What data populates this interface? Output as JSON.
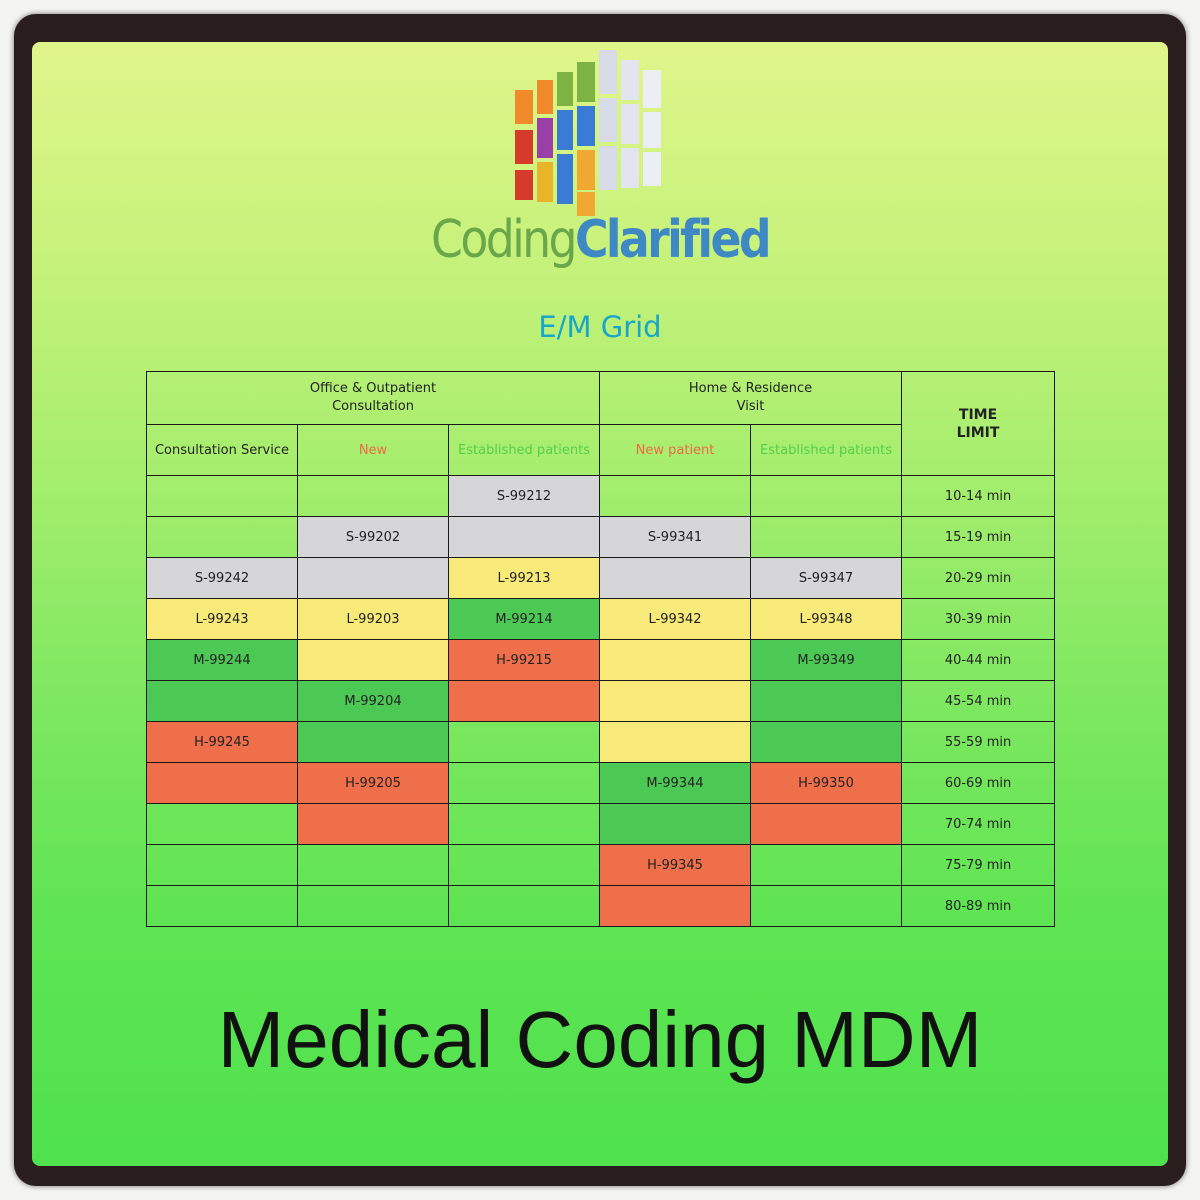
{
  "brand": {
    "part1": "Coding",
    "part2": "Clarified"
  },
  "subtitle": "E/M Grid",
  "table": {
    "group_headers": {
      "office_line1": "Office & Outpatient",
      "office_line2": "Consultation",
      "home_line1": "Home & Residence",
      "home_line2": "Visit",
      "time_line1": "TIME",
      "time_line2": "LIMIT"
    },
    "columns": [
      "Consultation Service",
      "New",
      "Established patients",
      "New patient",
      "Established patients"
    ],
    "colors": {
      "gray": "#d6d6d8",
      "yellow": "#f7ea78",
      "green": "#4cc855",
      "red": "#ef6f4b",
      "new_header_text": "#ef6a45",
      "established_header_text": "#54cf4c"
    },
    "rows": [
      {
        "cells": [
          {
            "text": "",
            "color": ""
          },
          {
            "text": "",
            "color": ""
          },
          {
            "text": "S-99212",
            "color": "gray"
          },
          {
            "text": "",
            "color": ""
          },
          {
            "text": "",
            "color": ""
          }
        ],
        "time": "10-14 min"
      },
      {
        "cells": [
          {
            "text": "",
            "color": ""
          },
          {
            "text": "S-99202",
            "color": "gray"
          },
          {
            "text": "",
            "color": "gray"
          },
          {
            "text": "S-99341",
            "color": "gray"
          },
          {
            "text": "",
            "color": ""
          }
        ],
        "time": "15-19 min"
      },
      {
        "cells": [
          {
            "text": "S-99242",
            "color": "gray"
          },
          {
            "text": "",
            "color": "gray"
          },
          {
            "text": "L-99213",
            "color": "yellow"
          },
          {
            "text": "",
            "color": "gray"
          },
          {
            "text": "S-99347",
            "color": "gray"
          }
        ],
        "time": "20-29 min"
      },
      {
        "cells": [
          {
            "text": "L-99243",
            "color": "yellow"
          },
          {
            "text": "L-99203",
            "color": "yellow"
          },
          {
            "text": "M-99214",
            "color": "green"
          },
          {
            "text": "L-99342",
            "color": "yellow"
          },
          {
            "text": "L-99348",
            "color": "yellow"
          }
        ],
        "time": "30-39 min"
      },
      {
        "cells": [
          {
            "text": "M-99244",
            "color": "green"
          },
          {
            "text": "",
            "color": "yellow"
          },
          {
            "text": "H-99215",
            "color": "red"
          },
          {
            "text": "",
            "color": "yellow"
          },
          {
            "text": "M-99349",
            "color": "green"
          }
        ],
        "time": "40-44 min"
      },
      {
        "cells": [
          {
            "text": "",
            "color": "green"
          },
          {
            "text": "M-99204",
            "color": "green"
          },
          {
            "text": "",
            "color": "red"
          },
          {
            "text": "",
            "color": "yellow"
          },
          {
            "text": "",
            "color": "green"
          }
        ],
        "time": "45-54 min"
      },
      {
        "cells": [
          {
            "text": "H-99245",
            "color": "red"
          },
          {
            "text": "",
            "color": "green"
          },
          {
            "text": "",
            "color": ""
          },
          {
            "text": "",
            "color": "yellow"
          },
          {
            "text": "",
            "color": "green"
          }
        ],
        "time": "55-59 min"
      },
      {
        "cells": [
          {
            "text": "",
            "color": "red"
          },
          {
            "text": "H-99205",
            "color": "red"
          },
          {
            "text": "",
            "color": ""
          },
          {
            "text": "M-99344",
            "color": "green"
          },
          {
            "text": "H-99350",
            "color": "red"
          }
        ],
        "time": "60-69 min"
      },
      {
        "cells": [
          {
            "text": "",
            "color": ""
          },
          {
            "text": "",
            "color": "red"
          },
          {
            "text": "",
            "color": ""
          },
          {
            "text": "",
            "color": "green"
          },
          {
            "text": "",
            "color": "red"
          }
        ],
        "time": "70-74 min"
      },
      {
        "cells": [
          {
            "text": "",
            "color": ""
          },
          {
            "text": "",
            "color": ""
          },
          {
            "text": "",
            "color": ""
          },
          {
            "text": "H-99345",
            "color": "red"
          },
          {
            "text": "",
            "color": ""
          }
        ],
        "time": "75-79 min"
      },
      {
        "cells": [
          {
            "text": "",
            "color": ""
          },
          {
            "text": "",
            "color": ""
          },
          {
            "text": "",
            "color": ""
          },
          {
            "text": "",
            "color": "red"
          },
          {
            "text": "",
            "color": ""
          }
        ],
        "time": "80-89 min"
      }
    ]
  },
  "footer": "Medical Coding MDM"
}
